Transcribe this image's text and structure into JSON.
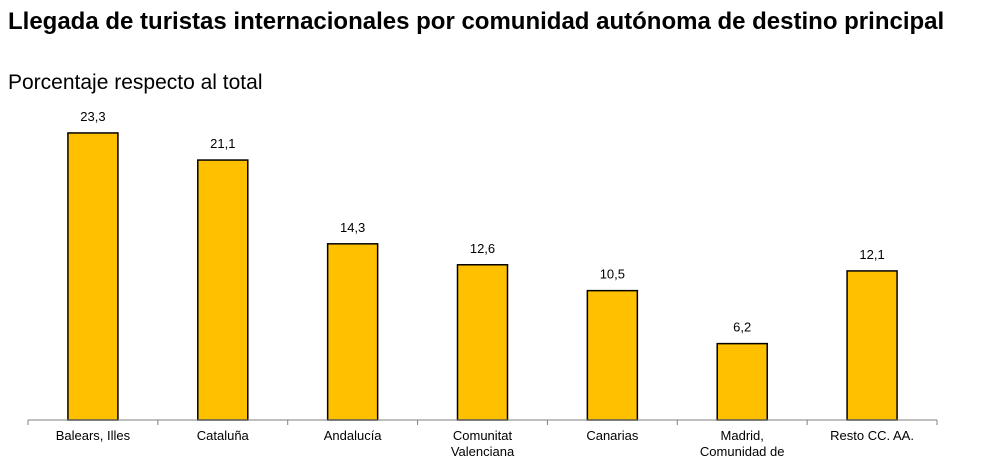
{
  "chart_data": {
    "type": "bar",
    "title": "Llegada de turistas internacionales por comunidad autónoma de destino principal",
    "subtitle": "Porcentaje respecto al total",
    "categories": [
      [
        "Balears, Illes"
      ],
      [
        "Cataluña"
      ],
      [
        "Andalucía"
      ],
      [
        "Comunitat",
        "Valenciana"
      ],
      [
        "Canarias"
      ],
      [
        "Madrid,",
        "Comunidad de"
      ],
      [
        "Resto CC. AA."
      ]
    ],
    "values": [
      23.3,
      21.1,
      14.3,
      12.6,
      10.5,
      6.2,
      12.1
    ],
    "value_labels": [
      "23,3",
      "21,1",
      "14,3",
      "12,6",
      "10,5",
      "6,2",
      "12,1"
    ],
    "ylim": [
      0,
      25
    ],
    "grid": false,
    "bar_color": "#FFC000",
    "bar_edge_color": "#000000"
  }
}
